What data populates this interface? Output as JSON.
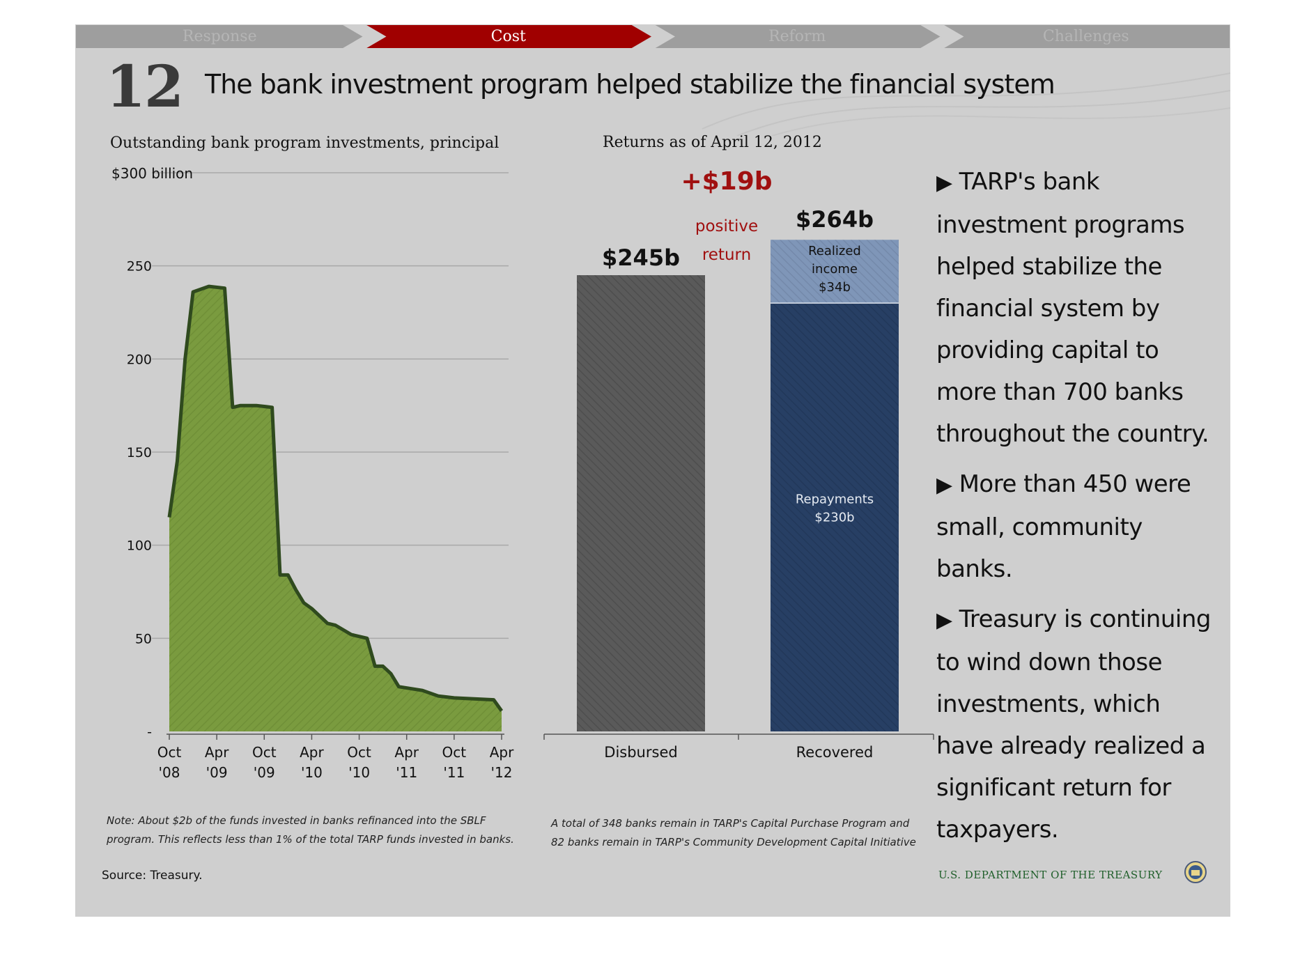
{
  "breadcrumb": {
    "items": [
      {
        "label": "Response",
        "active": false
      },
      {
        "label": "Cost",
        "active": true
      },
      {
        "label": "Reform",
        "active": false
      },
      {
        "label": "Challenges",
        "active": false
      }
    ],
    "active_color": "#a00000",
    "inactive_color": "#9e9e9e"
  },
  "slide": {
    "number": "12",
    "title": "The bank investment program helped stabilize the financial system"
  },
  "colors": {
    "area_fill": "#7a9b3f",
    "area_stroke": "#2f4a1e",
    "disbursed": "#5a5a5a",
    "repayments": "#273f64",
    "realized_income": "#7f96b8",
    "positive_return": "#a01010"
  },
  "chart_data": [
    {
      "type": "area",
      "title": "Outstanding bank program investments, principal",
      "top_label": "$300 billion",
      "ylim": [
        0,
        300
      ],
      "yticks": [
        {
          "value": 0,
          "label": "-"
        },
        {
          "value": 50,
          "label": "50"
        },
        {
          "value": 100,
          "label": "100"
        },
        {
          "value": 150,
          "label": "150"
        },
        {
          "value": 200,
          "label": "200"
        },
        {
          "value": 250,
          "label": "250"
        },
        {
          "value": 300,
          "label": "$300 billion"
        }
      ],
      "xlim": [
        "2008-10",
        "2012-04"
      ],
      "xticks": [
        {
          "date": "2008-10",
          "line1": "Oct",
          "line2": "'08"
        },
        {
          "date": "2009-04",
          "line1": "Apr",
          "line2": "'09"
        },
        {
          "date": "2009-10",
          "line1": "Oct",
          "line2": "'09"
        },
        {
          "date": "2010-04",
          "line1": "Apr",
          "line2": "'10"
        },
        {
          "date": "2010-10",
          "line1": "Oct",
          "line2": "'10"
        },
        {
          "date": "2011-04",
          "line1": "Apr",
          "line2": "'11"
        },
        {
          "date": "2011-10",
          "line1": "Oct",
          "line2": "'11"
        },
        {
          "date": "2012-04",
          "line1": "Apr",
          "line2": "'12"
        }
      ],
      "series": [
        {
          "points": [
            [
              "2008-10",
              115
            ],
            [
              "2008-11",
              145
            ],
            [
              "2008-12",
              200
            ],
            [
              "2009-01",
              236
            ],
            [
              "2009-03",
              239
            ],
            [
              "2009-05",
              238
            ],
            [
              "2009-06",
              174
            ],
            [
              "2009-07",
              175
            ],
            [
              "2009-09",
              175
            ],
            [
              "2009-11",
              174
            ],
            [
              "2009-12",
              84
            ],
            [
              "2010-01",
              84
            ],
            [
              "2010-02",
              76
            ],
            [
              "2010-03",
              69
            ],
            [
              "2010-04",
              66
            ],
            [
              "2010-06",
              58
            ],
            [
              "2010-07",
              57
            ],
            [
              "2010-09",
              52
            ],
            [
              "2010-11",
              50
            ],
            [
              "2010-12",
              35
            ],
            [
              "2011-01",
              35
            ],
            [
              "2011-02",
              31
            ],
            [
              "2011-03",
              24
            ],
            [
              "2011-06",
              22
            ],
            [
              "2011-08",
              19
            ],
            [
              "2011-10",
              18
            ],
            [
              "2012-03",
              17
            ],
            [
              "2012-04",
              11
            ]
          ]
        }
      ],
      "note": "Note: About $2b of the funds invested in banks refinanced into the SBLF program. This reflects less than 1% of the total TARP funds invested in banks."
    },
    {
      "type": "bar",
      "title": "Returns as of April 12, 2012",
      "categories": [
        "Disbursed",
        "Recovered"
      ],
      "ylim": [
        0,
        300
      ],
      "disbursed": {
        "value": 245,
        "label": "$245b"
      },
      "recovered": {
        "total": 264,
        "label": "$264b",
        "segments": [
          {
            "name": "Repayments",
            "value": 230,
            "label_line1": "Repayments",
            "label_line2": "$230b"
          },
          {
            "name": "Realized income",
            "value": 34,
            "label_line1": "Realized",
            "label_line2": "income",
            "label_line3": "$34b"
          }
        ]
      },
      "positive_return": {
        "amount": "+$19b",
        "line1": "positive",
        "line2": "return"
      },
      "note": "A total of 348 banks remain in TARP's Capital Purchase Program and 82 banks remain in TARP's Community Development Capital Initiative"
    }
  ],
  "bullets": [
    "TARP's bank investment programs helped stabilize the financial system by providing capital to more than 700 banks throughout the country.",
    "More than 450 were small, community banks.",
    "Treasury is continuing to wind down those investments, which have already realized a significant return for taxpayers."
  ],
  "bullet_marker": "▶",
  "footer": {
    "source": "Source: Treasury.",
    "department": "U.S. DEPARTMENT OF THE TREASURY",
    "seal_icon": "treasury-seal-icon"
  }
}
